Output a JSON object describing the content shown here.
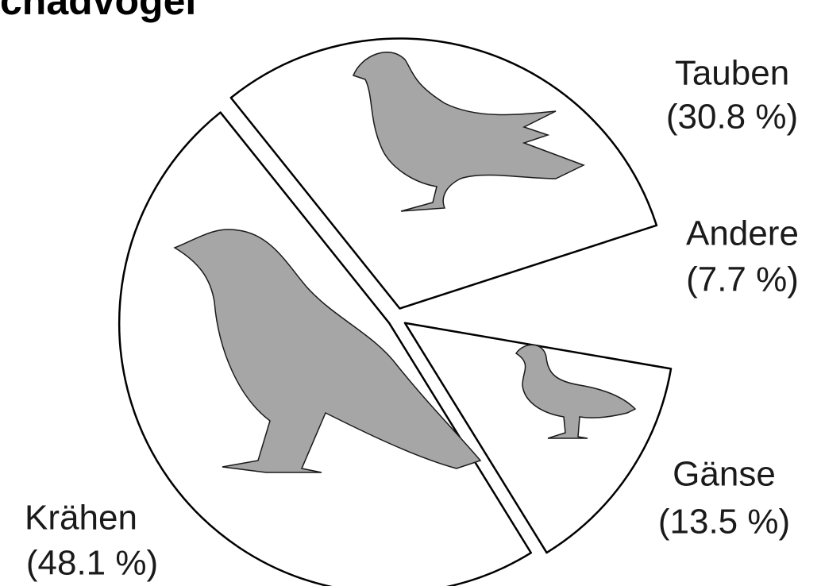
{
  "chart_data": {
    "type": "pie",
    "title": "chadvögel",
    "categories": [
      "Tauben",
      "Andere",
      "Gänse",
      "Krähen"
    ],
    "values": [
      30.8,
      7.7,
      13.5,
      48.1
    ],
    "value_labels": [
      "(30.8 %)",
      "(7.7 %)",
      "(13.5 %)",
      "(48.1 %)"
    ],
    "colors": [
      "#ffffff",
      "none",
      "#ffffff",
      "#ffffff"
    ],
    "edgecolors": [
      "#000000",
      "none",
      "#000000",
      "#000000"
    ]
  }
}
